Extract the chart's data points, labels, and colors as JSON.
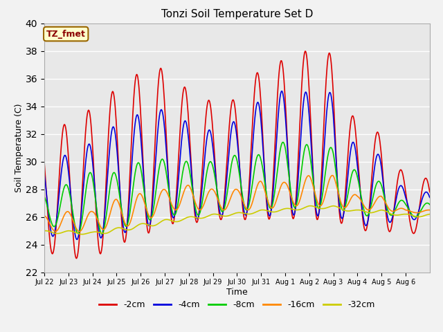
{
  "title": "Tonzi Soil Temperature Set D",
  "xlabel": "Time",
  "ylabel": "Soil Temperature (C)",
  "ylim": [
    22,
    40
  ],
  "annotation": "TZ_fmet",
  "plot_bg_color": "#e8e8e8",
  "fig_bg_color": "#f2f2f2",
  "series": {
    "-2cm": {
      "color": "#dd0000",
      "linestyle": "-",
      "linewidth": 1.2
    },
    "-4cm": {
      "color": "#0000dd",
      "linestyle": "-",
      "linewidth": 1.2
    },
    "-8cm": {
      "color": "#00cc00",
      "linestyle": "-",
      "linewidth": 1.2
    },
    "-16cm": {
      "color": "#ff8800",
      "linestyle": "-",
      "linewidth": 1.2
    },
    "-32cm": {
      "color": "#cccc00",
      "linestyle": "-",
      "linewidth": 1.2
    }
  },
  "xtick_labels": [
    "Jul 22",
    "Jul 23",
    "Jul 24",
    "Jul 25",
    "Jul 26",
    "Jul 27",
    "Jul 28",
    "Jul 29",
    "Jul 30",
    "Jul 31",
    "Aug 1",
    "Aug 2",
    "Aug 3",
    "Aug 4",
    "Aug 5",
    "Aug 6"
  ],
  "days": 16,
  "points_per_day": 48,
  "peaks_2cm": [
    32.1,
    32.8,
    33.9,
    35.3,
    36.5,
    36.8,
    35.1,
    34.3,
    34.5,
    36.8,
    37.4,
    38.1,
    37.8,
    32.3,
    32.1,
    28.8
  ],
  "mins_2cm": [
    23.5,
    23.0,
    23.0,
    24.0,
    24.5,
    25.5,
    25.5,
    25.8,
    25.8,
    25.8,
    25.9,
    25.8,
    25.8,
    25.0,
    25.0,
    24.8
  ],
  "peaks_4cm": [
    30.2,
    30.5,
    31.4,
    32.7,
    33.5,
    33.8,
    32.8,
    32.2,
    33.0,
    34.5,
    35.2,
    35.0,
    35.0,
    30.7,
    30.5,
    27.8
  ],
  "mins_4cm": [
    24.7,
    24.4,
    24.3,
    24.8,
    25.0,
    26.0,
    25.8,
    26.0,
    26.2,
    26.0,
    26.2,
    26.0,
    26.2,
    25.3,
    25.5,
    25.8
  ],
  "peaks_8cm": [
    27.7,
    28.4,
    29.3,
    29.2,
    30.0,
    30.2,
    30.0,
    30.0,
    30.5,
    30.5,
    31.5,
    31.2,
    31.0,
    29.2,
    28.5,
    27.0
  ],
  "mins_8cm": [
    25.5,
    25.0,
    24.5,
    25.2,
    25.5,
    26.2,
    26.0,
    26.3,
    26.5,
    26.5,
    26.8,
    26.5,
    26.8,
    26.0,
    26.2,
    26.0
  ],
  "peaks_16cm": [
    26.1,
    26.4,
    26.4,
    27.3,
    27.7,
    28.0,
    28.3,
    28.0,
    28.0,
    28.6,
    28.5,
    29.0,
    29.0,
    27.5,
    27.5,
    26.5
  ],
  "mins_16cm": [
    25.0,
    24.9,
    25.0,
    25.2,
    25.5,
    26.5,
    26.5,
    26.5,
    26.5,
    26.5,
    26.8,
    26.8,
    26.8,
    26.5,
    26.5,
    26.3
  ],
  "peaks_32cm": [
    25.0,
    25.0,
    24.9,
    25.2,
    25.5,
    25.8,
    26.0,
    26.2,
    26.3,
    26.5,
    26.6,
    26.8,
    26.8,
    26.5,
    26.5,
    26.2
  ],
  "mins_32cm": [
    24.8,
    24.8,
    24.7,
    24.9,
    25.2,
    25.5,
    25.8,
    26.0,
    26.1,
    26.3,
    26.4,
    26.6,
    26.6,
    26.3,
    26.3,
    26.0
  ],
  "legend_entries": [
    "-2cm",
    "-4cm",
    "-8cm",
    "-16cm",
    "-32cm"
  ]
}
